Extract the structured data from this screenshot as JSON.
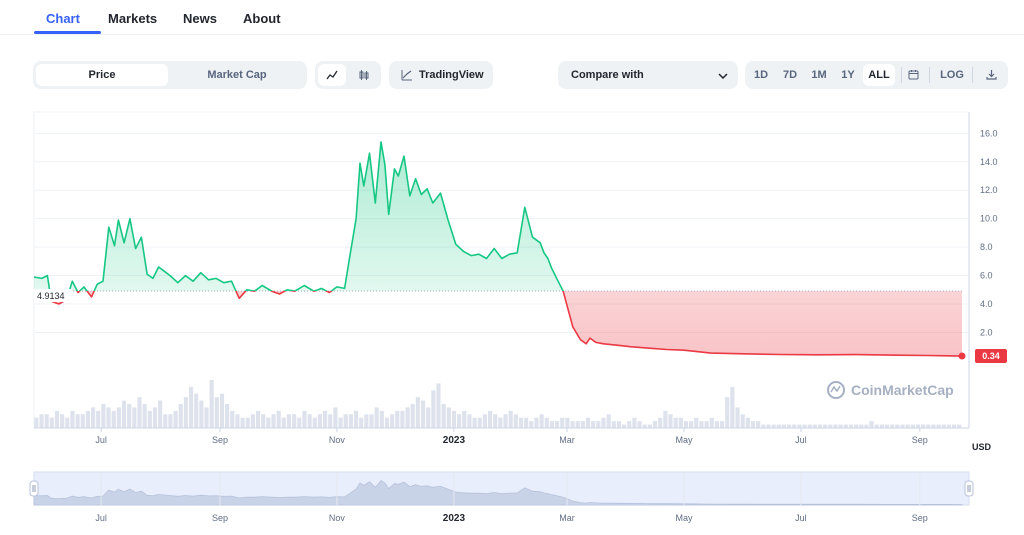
{
  "tabs": [
    {
      "label": "Chart",
      "active": true
    },
    {
      "label": "Markets",
      "active": false
    },
    {
      "label": "News",
      "active": false
    },
    {
      "label": "About",
      "active": false
    }
  ],
  "toolbar": {
    "type_toggle": [
      "Price",
      "Market Cap"
    ],
    "type_selected": "Price",
    "chart_style_icons": [
      "line-chart-icon",
      "candlestick-icon"
    ],
    "tradingview_label": "TradingView",
    "compare_label": "Compare with",
    "ranges": [
      "1D",
      "7D",
      "1M",
      "1Y",
      "ALL"
    ],
    "range_selected": "ALL",
    "log_label": "LOG",
    "calendar_icon": "calendar-icon",
    "download_icon": "download-icon"
  },
  "watermark": "CoinMarketCap",
  "currency_label": "USD",
  "chart_data": {
    "type": "line",
    "currency": "USD",
    "baseline_value": 4.9134,
    "baseline_label": "4.9134",
    "current_value": 0.34,
    "current_label": "0.34",
    "y_ticks": [
      16.0,
      14.0,
      12.0,
      10.0,
      8.0,
      6.0,
      4.0,
      2.0
    ],
    "y_tick_labels": [
      "16.0",
      "14.0",
      "12.0",
      "10.0",
      "8.0",
      "6.0",
      "4.0",
      "2.0"
    ],
    "ylim": [
      -0.5,
      17.5
    ],
    "x_range": [
      "2022-05-27",
      "2023-09-23"
    ],
    "x_ticks": [
      {
        "label": "Jul",
        "date": "2022-07-01",
        "year": false
      },
      {
        "label": "Sep",
        "date": "2022-09-01",
        "year": false
      },
      {
        "label": "Nov",
        "date": "2022-11-01",
        "year": false
      },
      {
        "label": "2023",
        "date": "2023-01-01",
        "year": true
      },
      {
        "label": "Mar",
        "date": "2023-03-01",
        "year": false
      },
      {
        "label": "May",
        "date": "2023-05-01",
        "year": false
      },
      {
        "label": "Jul",
        "date": "2023-07-01",
        "year": false
      },
      {
        "label": "Sep",
        "date": "2023-09-01",
        "year": false
      }
    ],
    "colors": {
      "up": "#16c784",
      "down": "#ea3943"
    },
    "price": {
      "x": [
        "2022-05-27",
        "2022-05-31",
        "2022-06-03",
        "2022-06-05",
        "2022-06-09",
        "2022-06-13",
        "2022-06-16",
        "2022-06-19",
        "2022-06-22",
        "2022-06-26",
        "2022-06-29",
        "2022-07-02",
        "2022-07-05",
        "2022-07-08",
        "2022-07-10",
        "2022-07-13",
        "2022-07-16",
        "2022-07-19",
        "2022-07-22",
        "2022-07-25",
        "2022-07-28",
        "2022-07-31",
        "2022-08-03",
        "2022-08-06",
        "2022-08-10",
        "2022-08-14",
        "2022-08-18",
        "2022-08-22",
        "2022-08-26",
        "2022-08-30",
        "2022-09-03",
        "2022-09-07",
        "2022-09-11",
        "2022-09-15",
        "2022-09-19",
        "2022-09-23",
        "2022-09-28",
        "2022-10-02",
        "2022-10-06",
        "2022-10-10",
        "2022-10-15",
        "2022-10-20",
        "2022-10-24",
        "2022-10-28",
        "2022-11-01",
        "2022-11-05",
        "2022-11-08",
        "2022-11-11",
        "2022-11-13",
        "2022-11-15",
        "2022-11-18",
        "2022-11-21",
        "2022-11-24",
        "2022-11-26",
        "2022-11-28",
        "2022-12-01",
        "2022-12-03",
        "2022-12-06",
        "2022-12-09",
        "2022-12-12",
        "2022-12-15",
        "2022-12-18",
        "2022-12-21",
        "2022-12-25",
        "2022-12-29",
        "2023-01-02",
        "2023-01-06",
        "2023-01-10",
        "2023-01-14",
        "2023-01-18",
        "2023-01-22",
        "2023-01-26",
        "2023-01-30",
        "2023-02-03",
        "2023-02-07",
        "2023-02-11",
        "2023-02-15",
        "2023-02-17",
        "2023-02-19",
        "2023-02-21",
        "2023-02-24",
        "2023-02-27",
        "2023-03-01",
        "2023-03-04",
        "2023-03-08",
        "2023-03-11",
        "2023-03-13",
        "2023-03-16",
        "2023-03-20",
        "2023-03-27",
        "2023-04-03",
        "2023-04-12",
        "2023-04-22",
        "2023-05-01",
        "2023-05-15",
        "2023-06-01",
        "2023-06-20",
        "2023-07-10",
        "2023-07-30",
        "2023-08-20",
        "2023-09-05",
        "2023-09-15",
        "2023-09-23"
      ],
      "y": [
        5.9,
        5.8,
        6.0,
        4.2,
        4.0,
        4.3,
        5.6,
        4.8,
        5.2,
        4.5,
        5.4,
        5.6,
        9.4,
        8.1,
        9.9,
        8.3,
        10.0,
        7.9,
        8.7,
        6.1,
        5.8,
        6.6,
        6.3,
        6.0,
        5.5,
        6.0,
        5.6,
        6.2,
        5.7,
        5.8,
        5.5,
        5.6,
        4.4,
        5.0,
        4.9,
        5.3,
        4.9,
        4.7,
        5.0,
        4.9,
        5.3,
        4.9,
        5.1,
        4.8,
        5.2,
        5.1,
        7.6,
        10.0,
        13.9,
        12.3,
        14.6,
        11.1,
        15.4,
        13.8,
        10.3,
        13.5,
        13.0,
        14.4,
        11.6,
        12.8,
        11.7,
        12.1,
        11.1,
        11.8,
        9.9,
        8.2,
        7.7,
        7.4,
        7.5,
        7.2,
        7.9,
        7.2,
        7.5,
        7.6,
        10.8,
        8.7,
        8.3,
        7.6,
        7.2,
        6.5,
        5.7,
        4.9,
        3.9,
        2.4,
        1.5,
        1.2,
        1.6,
        1.3,
        1.2,
        1.1,
        1.0,
        0.9,
        0.8,
        0.75,
        0.55,
        0.5,
        0.45,
        0.43,
        0.44,
        0.4,
        0.38,
        0.36,
        0.34
      ]
    },
    "volume_note": "relative volume bars",
    "volume": [
      3,
      4,
      4,
      3,
      5,
      4,
      3,
      5,
      4,
      4,
      5,
      6,
      5,
      7,
      6,
      5,
      6,
      8,
      7,
      6,
      9,
      7,
      5,
      6,
      8,
      4,
      4,
      5,
      7,
      9,
      12,
      10,
      8,
      6,
      14,
      9,
      10,
      7,
      5,
      4,
      3,
      3,
      4,
      5,
      4,
      3,
      4,
      5,
      3,
      4,
      4,
      3,
      5,
      4,
      3,
      4,
      5,
      4,
      6,
      3,
      4,
      4,
      5,
      3,
      4,
      4,
      6,
      5,
      3,
      4,
      5,
      5,
      6,
      7,
      9,
      8,
      6,
      11,
      13,
      7,
      6,
      5,
      4,
      5,
      4,
      3,
      3,
      4,
      5,
      4,
      3,
      4,
      5,
      4,
      3,
      3,
      2,
      3,
      4,
      3,
      2,
      2,
      3,
      3,
      2,
      2,
      2,
      3,
      2,
      2,
      3,
      4,
      2,
      2,
      1,
      2,
      3,
      2,
      1,
      1,
      2,
      3,
      5,
      4,
      3,
      3,
      2,
      2,
      3,
      2,
      2,
      3,
      2,
      2,
      9,
      12,
      6,
      4,
      3,
      2,
      2,
      1,
      1,
      1,
      1,
      1,
      1,
      1,
      1,
      1,
      1,
      1,
      1,
      1,
      1,
      1,
      1,
      1,
      1,
      1,
      1,
      1,
      2,
      1,
      1,
      1,
      1,
      1,
      1,
      1,
      1,
      1,
      1,
      1,
      1,
      1,
      1,
      1,
      1,
      1
    ]
  }
}
